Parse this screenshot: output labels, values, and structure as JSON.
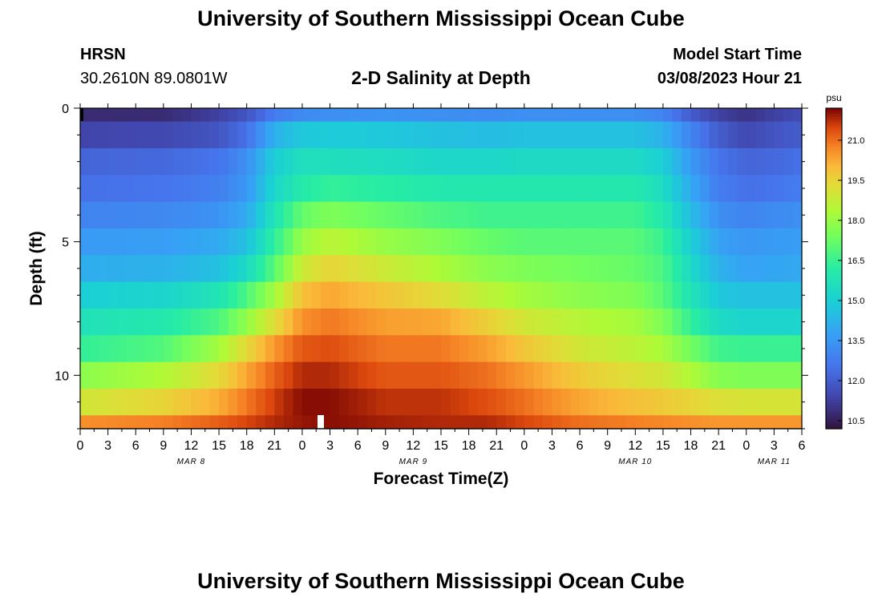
{
  "page": {
    "title_top": "University of Southern Mississippi Ocean Cube",
    "title_bottom": "University of Southern Mississippi Ocean Cube",
    "station": {
      "name": "HRSN",
      "coords": "30.2610N  89.0801W"
    },
    "subtitle": "2-D Salinity at Depth",
    "model": {
      "label": "Model Start Time",
      "value": "03/08/2023 Hour 21"
    }
  },
  "chart_data": {
    "type": "heatmap",
    "title": "2-D Salinity at Depth",
    "xlabel": "Forecast Time(Z)",
    "ylabel": "Depth (ft)",
    "y_range": [
      0,
      12
    ],
    "y_ticks": [
      "0",
      "5",
      "10"
    ],
    "y_tick_values": [
      0,
      5,
      10
    ],
    "x_range_hours": [
      0,
      78
    ],
    "x_tick_labels": [
      "0",
      "3",
      "6",
      "9",
      "12",
      "15",
      "18",
      "21",
      "0",
      "3",
      "6",
      "9",
      "12",
      "15",
      "18",
      "21",
      "0",
      "3",
      "6",
      "9",
      "12",
      "15",
      "18",
      "21",
      "0",
      "3",
      "6"
    ],
    "x_date_labels": [
      {
        "label": "MAR 8",
        "hour": 12
      },
      {
        "label": "MAR 9",
        "hour": 36
      },
      {
        "label": "MAR 10",
        "hour": 60
      },
      {
        "label": "MAR 11",
        "hour": 75
      }
    ],
    "colorbar": {
      "unit": "psu",
      "min": 10.2,
      "max": 22.2,
      "ticks": [
        "21.0",
        "19.5",
        "18.0",
        "16.5",
        "15.0",
        "13.5",
        "12.0",
        "10.5"
      ],
      "tick_values": [
        21.0,
        19.5,
        18.0,
        16.5,
        15.0,
        13.5,
        12.0,
        10.5
      ]
    },
    "depth_layers_ft": [
      0,
      1,
      2,
      3,
      4,
      5,
      6,
      7,
      8,
      9,
      10,
      11,
      12
    ],
    "salinity_keyframes": {
      "hours": [
        0,
        9,
        15,
        18,
        21,
        24,
        27,
        33,
        39,
        44,
        48,
        54,
        60,
        63,
        66,
        69,
        72,
        75,
        78
      ],
      "rows": [
        [
          10.8,
          10.8,
          11.3,
          11.8,
          12.8,
          13.2,
          13.3,
          13.4,
          13.3,
          13.2,
          13.3,
          13.3,
          13.3,
          13.0,
          12.0,
          11.3,
          11.0,
          11.3,
          11.6
        ],
        [
          11.4,
          11.5,
          11.8,
          12.5,
          14.2,
          14.8,
          14.9,
          14.8,
          14.6,
          14.5,
          14.6,
          14.6,
          14.6,
          14.2,
          13.0,
          12.0,
          11.5,
          11.8,
          12.0
        ],
        [
          12.2,
          12.3,
          12.6,
          13.3,
          15.0,
          15.6,
          15.6,
          15.5,
          15.3,
          15.3,
          15.4,
          15.4,
          15.4,
          15.0,
          13.6,
          12.6,
          12.2,
          12.3,
          12.5
        ],
        [
          12.5,
          12.6,
          12.9,
          13.5,
          15.3,
          16.1,
          16.4,
          16.2,
          16.0,
          16.0,
          16.0,
          16.0,
          16.0,
          15.5,
          14.0,
          12.8,
          12.5,
          12.6,
          12.8
        ],
        [
          13.0,
          13.1,
          13.4,
          14.0,
          15.8,
          17.2,
          17.6,
          17.2,
          16.8,
          16.6,
          16.6,
          16.6,
          16.6,
          16.0,
          14.5,
          13.3,
          13.0,
          13.2,
          13.3
        ],
        [
          13.6,
          13.7,
          14.0,
          14.6,
          16.3,
          18.0,
          18.6,
          18.0,
          17.6,
          17.2,
          17.0,
          17.0,
          17.0,
          16.5,
          15.0,
          13.8,
          13.5,
          13.6,
          13.7
        ],
        [
          14.1,
          14.2,
          14.6,
          15.4,
          17.0,
          18.9,
          19.5,
          18.9,
          18.3,
          17.8,
          17.6,
          17.4,
          17.2,
          16.8,
          15.4,
          14.2,
          13.8,
          13.9,
          14.0
        ],
        [
          15.0,
          15.2,
          15.8,
          16.8,
          18.2,
          19.9,
          20.3,
          19.8,
          19.3,
          18.6,
          18.2,
          17.8,
          17.6,
          17.0,
          15.8,
          14.8,
          14.6,
          14.6,
          14.6
        ],
        [
          15.7,
          16.0,
          16.8,
          17.9,
          19.3,
          20.6,
          20.9,
          20.4,
          20.3,
          19.6,
          19.0,
          18.5,
          18.2,
          17.6,
          16.4,
          15.4,
          15.2,
          15.2,
          15.2
        ],
        [
          16.4,
          16.9,
          18.2,
          19.4,
          20.5,
          21.3,
          21.4,
          20.9,
          20.9,
          20.4,
          19.8,
          19.0,
          18.6,
          18.3,
          17.4,
          16.6,
          16.5,
          16.5,
          16.5
        ],
        [
          17.8,
          18.4,
          19.4,
          20.3,
          21.2,
          21.8,
          21.8,
          21.3,
          21.3,
          21.0,
          20.5,
          19.7,
          19.2,
          19.0,
          18.4,
          17.7,
          17.6,
          17.6,
          17.6
        ],
        [
          19.0,
          19.5,
          20.2,
          20.9,
          21.6,
          22.1,
          22.1,
          21.7,
          21.7,
          21.4,
          21.0,
          20.3,
          19.9,
          19.7,
          19.5,
          19.2,
          19.1,
          19.1,
          19.1
        ],
        [
          20.6,
          20.8,
          21.2,
          21.5,
          21.8,
          22.0,
          22.1,
          21.9,
          21.8,
          21.8,
          21.5,
          21.0,
          20.8,
          20.7,
          20.6,
          20.5,
          20.5,
          20.5,
          20.5
        ]
      ]
    },
    "current_time_marker_hour": 26
  }
}
